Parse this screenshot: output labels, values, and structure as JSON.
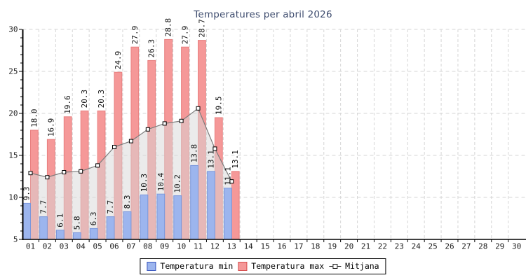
{
  "title": "Temperatures per abril 2026",
  "legend": {
    "min_label": "Temperatura min",
    "max_label": "Temperatura max",
    "mitjana_label": "Mitjana"
  },
  "chart_data": {
    "type": "bar",
    "title": "Temperatures per abril 2026",
    "categories": [
      "01",
      "02",
      "03",
      "04",
      "05",
      "06",
      "07",
      "08",
      "09",
      "10",
      "11",
      "12",
      "13",
      "14",
      "15",
      "16",
      "17",
      "18",
      "19",
      "20",
      "21",
      "22",
      "23",
      "24",
      "25",
      "26",
      "27",
      "28",
      "29",
      "30"
    ],
    "series": [
      {
        "name": "Temperatura min",
        "type": "bar",
        "color": "#9CB5EE",
        "border": "#7B97DB",
        "legend_border": "#3A57BE",
        "values": [
          9.3,
          7.7,
          6.1,
          5.8,
          6.3,
          7.7,
          8.3,
          10.3,
          10.4,
          10.2,
          13.8,
          13.1,
          11.1
        ]
      },
      {
        "name": "Temperatura max",
        "type": "bar",
        "color": "#F59898",
        "border": "#E87F7F",
        "legend_border": "#D64F4F",
        "values": [
          18.0,
          16.9,
          19.6,
          20.3,
          20.3,
          24.9,
          27.9,
          26.3,
          28.8,
          27.9,
          28.7,
          19.5,
          13.1
        ]
      },
      {
        "name": "Mitjana",
        "type": "line",
        "color": "#7C7C7C",
        "marker_fill": "#FFFFFF",
        "marker_stroke": "#000000",
        "area_fill": "#D8D8D8",
        "values": [
          12.9,
          12.4,
          13.0,
          13.1,
          13.8,
          16.0,
          16.7,
          18.1,
          18.8,
          19.1,
          20.6,
          15.8,
          11.9
        ]
      }
    ],
    "xlabel": "",
    "ylabel": "",
    "ylim": [
      5,
      30
    ],
    "yticks": [
      5,
      10,
      15,
      20,
      25,
      30
    ],
    "grid": true,
    "legend_position": "bottom",
    "bar_value_labels": true
  },
  "palette": {
    "background": "#FFFFFF",
    "grid": "#D6D6D6",
    "axis": "#000000",
    "title_color": "#3E4C6E",
    "tick_label_color": "#1C1C1C",
    "value_label_color": "#111111"
  }
}
